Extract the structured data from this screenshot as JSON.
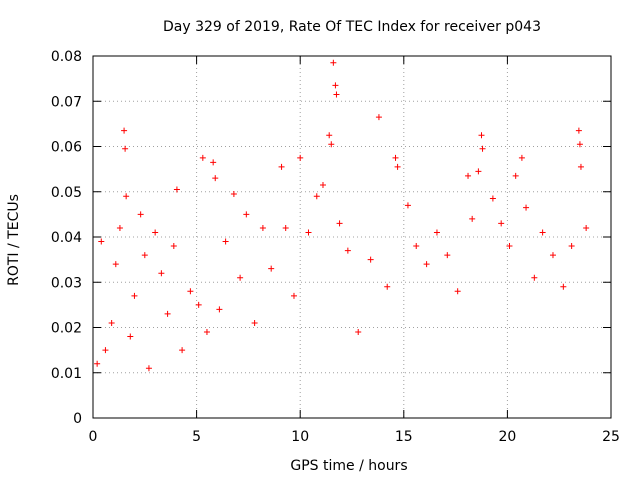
{
  "chart_data": {
    "type": "scatter",
    "title": "Day 329 of 2019, Rate Of TEC Index for receiver p043",
    "xlabel": "GPS time / hours",
    "ylabel": "ROTI / TECUs",
    "xlim": [
      0,
      25
    ],
    "ylim": [
      0,
      0.08
    ],
    "xticks": [
      0,
      5,
      10,
      15,
      20,
      25
    ],
    "xtick_labels": [
      "0",
      "5",
      "10",
      "15",
      "20",
      "25"
    ],
    "yticks": [
      0,
      0.01,
      0.02,
      0.03,
      0.04,
      0.05,
      0.06,
      0.07,
      0.08
    ],
    "ytick_labels": [
      "0",
      "0.01",
      "0.02",
      "0.03",
      "0.04",
      "0.05",
      "0.06",
      "0.07",
      "0.08"
    ],
    "grid": true,
    "marker": "+",
    "color": "#ff0000",
    "series": [
      {
        "name": "ROTI",
        "points": [
          [
            0.2,
            0.012
          ],
          [
            0.4,
            0.039
          ],
          [
            0.6,
            0.015
          ],
          [
            0.9,
            0.021
          ],
          [
            1.1,
            0.034
          ],
          [
            1.3,
            0.042
          ],
          [
            1.5,
            0.0635
          ],
          [
            1.55,
            0.0595
          ],
          [
            1.6,
            0.049
          ],
          [
            1.8,
            0.018
          ],
          [
            2.0,
            0.027
          ],
          [
            2.3,
            0.045
          ],
          [
            2.5,
            0.036
          ],
          [
            2.7,
            0.011
          ],
          [
            3.0,
            0.041
          ],
          [
            3.3,
            0.032
          ],
          [
            3.6,
            0.023
          ],
          [
            3.9,
            0.038
          ],
          [
            4.05,
            0.0505
          ],
          [
            4.3,
            0.015
          ],
          [
            4.7,
            0.028
          ],
          [
            5.1,
            0.025
          ],
          [
            5.3,
            0.0575
          ],
          [
            5.5,
            0.019
          ],
          [
            5.8,
            0.0565
          ],
          [
            5.9,
            0.053
          ],
          [
            6.1,
            0.024
          ],
          [
            6.4,
            0.039
          ],
          [
            6.8,
            0.0495
          ],
          [
            7.1,
            0.031
          ],
          [
            7.4,
            0.045
          ],
          [
            7.8,
            0.021
          ],
          [
            8.2,
            0.042
          ],
          [
            8.6,
            0.033
          ],
          [
            9.1,
            0.0555
          ],
          [
            9.3,
            0.042
          ],
          [
            9.7,
            0.027
          ],
          [
            10.0,
            0.0575
          ],
          [
            10.4,
            0.041
          ],
          [
            10.8,
            0.049
          ],
          [
            11.1,
            0.0515
          ],
          [
            11.4,
            0.0625
          ],
          [
            11.5,
            0.0605
          ],
          [
            11.6,
            0.0785
          ],
          [
            11.7,
            0.0735
          ],
          [
            11.75,
            0.0715
          ],
          [
            11.9,
            0.043
          ],
          [
            12.3,
            0.037
          ],
          [
            12.8,
            0.019
          ],
          [
            13.4,
            0.035
          ],
          [
            13.8,
            0.0665
          ],
          [
            14.2,
            0.029
          ],
          [
            14.6,
            0.0575
          ],
          [
            14.7,
            0.0555
          ],
          [
            15.2,
            0.047
          ],
          [
            15.6,
            0.038
          ],
          [
            16.1,
            0.034
          ],
          [
            16.6,
            0.041
          ],
          [
            17.1,
            0.036
          ],
          [
            17.6,
            0.028
          ],
          [
            18.1,
            0.0535
          ],
          [
            18.3,
            0.044
          ],
          [
            18.6,
            0.0545
          ],
          [
            18.75,
            0.0625
          ],
          [
            18.8,
            0.0595
          ],
          [
            19.3,
            0.0485
          ],
          [
            19.7,
            0.043
          ],
          [
            20.1,
            0.038
          ],
          [
            20.4,
            0.0535
          ],
          [
            20.7,
            0.0575
          ],
          [
            20.9,
            0.0465
          ],
          [
            21.3,
            0.031
          ],
          [
            21.7,
            0.041
          ],
          [
            22.2,
            0.036
          ],
          [
            22.7,
            0.029
          ],
          [
            23.1,
            0.038
          ],
          [
            23.45,
            0.0635
          ],
          [
            23.5,
            0.0605
          ],
          [
            23.55,
            0.0555
          ],
          [
            23.8,
            0.042
          ]
        ]
      }
    ]
  }
}
